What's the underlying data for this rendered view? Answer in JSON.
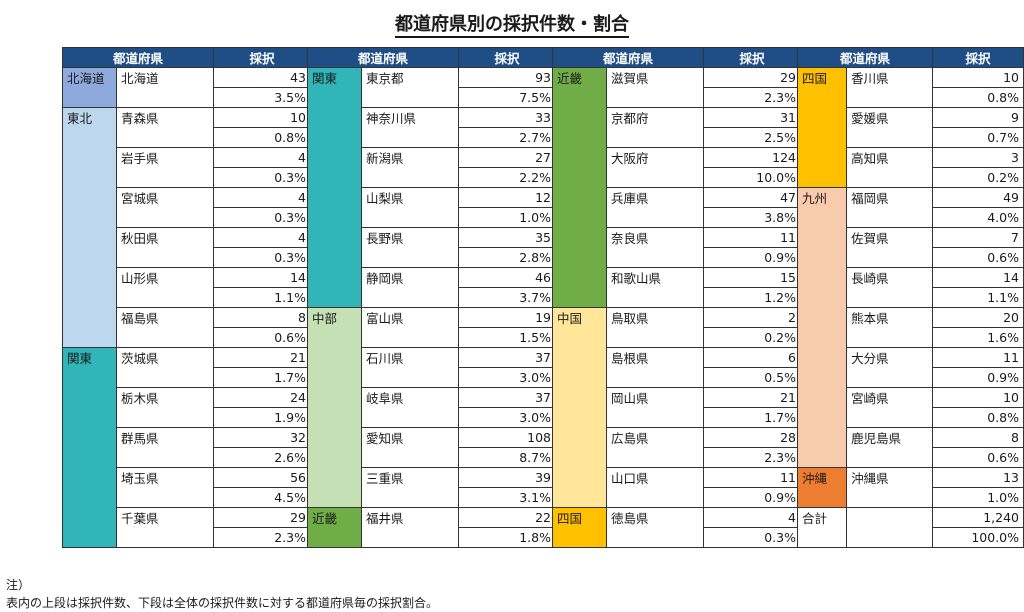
{
  "title": "都道府県別の採択件数・割合",
  "header": {
    "region_col": "都道府県",
    "count_col": "採択"
  },
  "region_colors": {
    "北海道": "#8eaadc",
    "東北": "#bdd7ee",
    "関東": "#31b5b8",
    "中部": "#c5e0b4",
    "近畿": "#70ad47",
    "中国": "#ffe699",
    "四国": "#ffc000",
    "九州": "#f8cbad",
    "沖縄": "#ed7d31",
    "合計": "#ffffff"
  },
  "tables": [
    {
      "groups": [
        {
          "region": "北海道",
          "rows": [
            {
              "pref": "北海道",
              "count": "43",
              "pct": "3.5%"
            }
          ]
        },
        {
          "region": "東北",
          "rows": [
            {
              "pref": "青森県",
              "count": "10",
              "pct": "0.8%"
            },
            {
              "pref": "岩手県",
              "count": "4",
              "pct": "0.3%"
            },
            {
              "pref": "宮城県",
              "count": "4",
              "pct": "0.3%"
            },
            {
              "pref": "秋田県",
              "count": "4",
              "pct": "0.3%"
            },
            {
              "pref": "山形県",
              "count": "14",
              "pct": "1.1%"
            },
            {
              "pref": "福島県",
              "count": "8",
              "pct": "0.6%"
            }
          ]
        },
        {
          "region": "関東",
          "rows": [
            {
              "pref": "茨城県",
              "count": "21",
              "pct": "1.7%"
            },
            {
              "pref": "栃木県",
              "count": "24",
              "pct": "1.9%"
            },
            {
              "pref": "群馬県",
              "count": "32",
              "pct": "2.6%"
            },
            {
              "pref": "埼玉県",
              "count": "56",
              "pct": "4.5%"
            },
            {
              "pref": "千葉県",
              "count": "29",
              "pct": "2.3%"
            }
          ]
        }
      ]
    },
    {
      "groups": [
        {
          "region": "関東",
          "rows": [
            {
              "pref": "東京都",
              "count": "93",
              "pct": "7.5%"
            },
            {
              "pref": "神奈川県",
              "count": "33",
              "pct": "2.7%"
            },
            {
              "pref": "新潟県",
              "count": "27",
              "pct": "2.2%"
            },
            {
              "pref": "山梨県",
              "count": "12",
              "pct": "1.0%"
            },
            {
              "pref": "長野県",
              "count": "35",
              "pct": "2.8%"
            },
            {
              "pref": "静岡県",
              "count": "46",
              "pct": "3.7%"
            }
          ]
        },
        {
          "region": "中部",
          "rows": [
            {
              "pref": "富山県",
              "count": "19",
              "pct": "1.5%"
            },
            {
              "pref": "石川県",
              "count": "37",
              "pct": "3.0%"
            },
            {
              "pref": "岐阜県",
              "count": "37",
              "pct": "3.0%"
            },
            {
              "pref": "愛知県",
              "count": "108",
              "pct": "8.7%"
            },
            {
              "pref": "三重県",
              "count": "39",
              "pct": "3.1%"
            }
          ]
        },
        {
          "region": "近畿",
          "rows": [
            {
              "pref": "福井県",
              "count": "22",
              "pct": "1.8%"
            }
          ]
        }
      ]
    },
    {
      "groups": [
        {
          "region": "近畿",
          "rows": [
            {
              "pref": "滋賀県",
              "count": "29",
              "pct": "2.3%"
            },
            {
              "pref": "京都府",
              "count": "31",
              "pct": "2.5%"
            },
            {
              "pref": "大阪府",
              "count": "124",
              "pct": "10.0%"
            },
            {
              "pref": "兵庫県",
              "count": "47",
              "pct": "3.8%"
            },
            {
              "pref": "奈良県",
              "count": "11",
              "pct": "0.9%"
            },
            {
              "pref": "和歌山県",
              "count": "15",
              "pct": "1.2%"
            }
          ]
        },
        {
          "region": "中国",
          "rows": [
            {
              "pref": "鳥取県",
              "count": "2",
              "pct": "0.2%"
            },
            {
              "pref": "島根県",
              "count": "6",
              "pct": "0.5%"
            },
            {
              "pref": "岡山県",
              "count": "21",
              "pct": "1.7%"
            },
            {
              "pref": "広島県",
              "count": "28",
              "pct": "2.3%"
            },
            {
              "pref": "山口県",
              "count": "11",
              "pct": "0.9%"
            }
          ]
        },
        {
          "region": "四国",
          "rows": [
            {
              "pref": "徳島県",
              "count": "4",
              "pct": "0.3%"
            }
          ]
        }
      ]
    },
    {
      "groups": [
        {
          "region": "四国",
          "rows": [
            {
              "pref": "香川県",
              "count": "10",
              "pct": "0.8%"
            },
            {
              "pref": "愛媛県",
              "count": "9",
              "pct": "0.7%"
            },
            {
              "pref": "高知県",
              "count": "3",
              "pct": "0.2%"
            }
          ]
        },
        {
          "region": "九州",
          "rows": [
            {
              "pref": "福岡県",
              "count": "49",
              "pct": "4.0%"
            },
            {
              "pref": "佐賀県",
              "count": "7",
              "pct": "0.6%"
            },
            {
              "pref": "長崎県",
              "count": "14",
              "pct": "1.1%"
            },
            {
              "pref": "熊本県",
              "count": "20",
              "pct": "1.6%"
            },
            {
              "pref": "大分県",
              "count": "11",
              "pct": "0.9%"
            },
            {
              "pref": "宮崎県",
              "count": "10",
              "pct": "0.8%"
            },
            {
              "pref": "鹿児島県",
              "count": "8",
              "pct": "0.6%"
            }
          ]
        },
        {
          "region": "沖縄",
          "rows": [
            {
              "pref": "沖縄県",
              "count": "13",
              "pct": "1.0%"
            }
          ]
        },
        {
          "region": "合計",
          "rows": [
            {
              "pref": "",
              "count": "1,240",
              "pct": "100.0%"
            }
          ]
        }
      ]
    }
  ],
  "note": {
    "heading": "注）",
    "text": "表内の上段は採択件数、下段は全体の採択件数に対する都道府県毎の採択割合。"
  }
}
